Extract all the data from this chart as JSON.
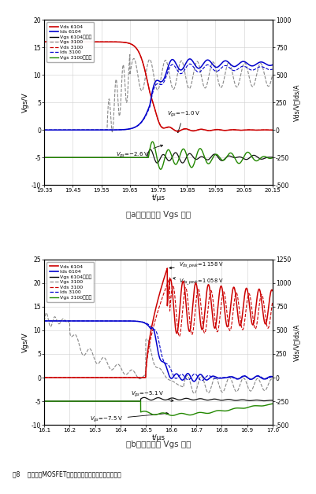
{
  "plot_a": {
    "xlabel": "t/μs",
    "ylabel_left": "Vgs/V",
    "ylabel_right": "Vds/V，Ids/A",
    "xlim": [
      19.35,
      20.15
    ],
    "ylim_left": [
      -10,
      20
    ],
    "ylim_right": [
      -500,
      1000
    ],
    "xticks": [
      19.35,
      19.45,
      19.55,
      19.65,
      19.75,
      19.85,
      19.95,
      20.05,
      20.15
    ],
    "yticks_left": [
      -10,
      -5,
      0,
      5,
      10,
      15,
      20
    ],
    "yticks_right": [
      -500,
      -250,
      0,
      250,
      500,
      750,
      1000
    ],
    "caption": "（a）开通串扰 Vgs 波形",
    "legend": [
      {
        "label": "Vds 6104",
        "color": "#cc0000",
        "ls": "-",
        "lw": 1.2
      },
      {
        "label": "Ids 6104",
        "color": "#0000cc",
        "ls": "-",
        "lw": 1.2
      },
      {
        "label": "Vgs 6104陪试管",
        "color": "#000000",
        "ls": "-",
        "lw": 1.0
      },
      {
        "label": "Vgs 3100",
        "color": "#888888",
        "ls": "--",
        "lw": 0.9
      },
      {
        "label": "Vds 3100",
        "color": "#cc0000",
        "ls": "--",
        "lw": 0.9
      },
      {
        "label": "Ids 3100",
        "color": "#0000cc",
        "ls": "--",
        "lw": 0.9
      },
      {
        "label": "Vgs 3100陪试管",
        "color": "#228800",
        "ls": "-",
        "lw": 1.0
      }
    ]
  },
  "plot_b": {
    "xlabel": "t/μs",
    "ylabel_left": "Vgs/V",
    "ylabel_right": "Vds/V，Ids/A",
    "xlim": [
      16.1,
      17.0
    ],
    "ylim_left": [
      -10,
      25
    ],
    "ylim_right": [
      -500,
      1250
    ],
    "xticks": [
      16.1,
      16.2,
      16.3,
      16.4,
      16.5,
      16.6,
      16.7,
      16.8,
      16.9,
      17.0
    ],
    "yticks_left": [
      -10,
      -5,
      0,
      5,
      10,
      15,
      20,
      25
    ],
    "yticks_right": [
      -500,
      -250,
      0,
      250,
      500,
      750,
      1000,
      1250
    ],
    "caption": "（b）关断串扰 Vgs 波形",
    "legend": [
      {
        "label": "Vds 6104",
        "color": "#cc0000",
        "ls": "-",
        "lw": 1.2
      },
      {
        "label": "Ids 6104",
        "color": "#0000cc",
        "ls": "-",
        "lw": 1.2
      },
      {
        "label": "Vgs 6104陪试管",
        "color": "#000000",
        "ls": "-",
        "lw": 1.0
      },
      {
        "label": "Vgs 3100",
        "color": "#888888",
        "ls": "--",
        "lw": 0.9
      },
      {
        "label": "Vds 3100",
        "color": "#cc0000",
        "ls": "--",
        "lw": 0.9
      },
      {
        "label": "Ids 3100",
        "color": "#0000cc",
        "ls": "--",
        "lw": 0.9
      },
      {
        "label": "Vgs 3100陪试管",
        "color": "#228800",
        "ls": "-",
        "lw": 1.0
      }
    ]
  },
  "figure_caption": "图8    两种不同MOSFET内阻的驱动集成电路串扰测试波形"
}
